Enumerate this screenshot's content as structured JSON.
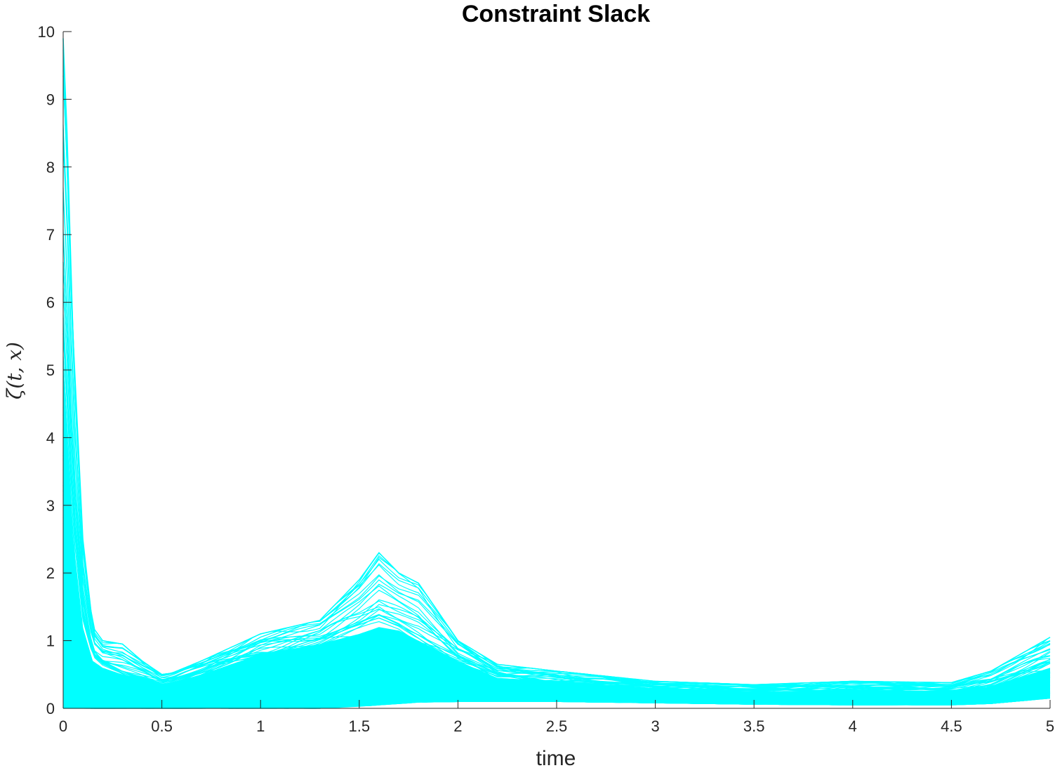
{
  "chart_data": {
    "type": "line",
    "title": "Constraint Slack",
    "xlabel": "time",
    "ylabel": "ζ(t, x)",
    "xlim": [
      0,
      5
    ],
    "ylim": [
      0,
      10
    ],
    "xticks": [
      0,
      0.5,
      1,
      1.5,
      2,
      2.5,
      3,
      3.5,
      4,
      4.5,
      5
    ],
    "xtick_labels": [
      "0",
      "0.5",
      "1",
      "1.5",
      "2",
      "2.5",
      "3",
      "3.5",
      "4",
      "4.5",
      "5"
    ],
    "yticks": [
      0,
      1,
      2,
      3,
      4,
      5,
      6,
      7,
      8,
      9,
      10
    ],
    "ytick_labels": [
      "0",
      "1",
      "2",
      "3",
      "4",
      "5",
      "6",
      "7",
      "8",
      "9",
      "10"
    ],
    "grid": false,
    "line_color": "#00FFFF",
    "axis_color": "#262626",
    "series_envelope": {
      "x": [
        0,
        0.02,
        0.05,
        0.1,
        0.15,
        0.2,
        0.3,
        0.4,
        0.5,
        0.55,
        0.7,
        1.0,
        1.3,
        1.5,
        1.6,
        1.7,
        1.8,
        2.0,
        2.2,
        2.5,
        3.0,
        3.5,
        4.0,
        4.5,
        4.7,
        5.0
      ],
      "upper": [
        9.9,
        8.5,
        5.5,
        2.5,
        1.2,
        1.0,
        0.95,
        0.7,
        0.5,
        0.52,
        0.7,
        1.1,
        1.3,
        1.9,
        2.3,
        2.0,
        1.85,
        1.0,
        0.65,
        0.55,
        0.4,
        0.35,
        0.4,
        0.38,
        0.55,
        1.05
      ],
      "mid": [
        5.0,
        4.0,
        2.5,
        1.2,
        0.7,
        0.6,
        0.5,
        0.45,
        0.35,
        0.38,
        0.5,
        0.8,
        0.95,
        1.1,
        1.2,
        1.15,
        1.0,
        0.7,
        0.45,
        0.4,
        0.3,
        0.25,
        0.27,
        0.26,
        0.32,
        0.6
      ],
      "lower": [
        0.0,
        0.0,
        0.0,
        0.0,
        0.0,
        0.0,
        0.0,
        0.0,
        0.0,
        0.0,
        0.0,
        0.0,
        0.0,
        0.03,
        0.05,
        0.07,
        0.09,
        0.1,
        0.1,
        0.1,
        0.08,
        0.06,
        0.05,
        0.05,
        0.07,
        0.15
      ]
    }
  }
}
